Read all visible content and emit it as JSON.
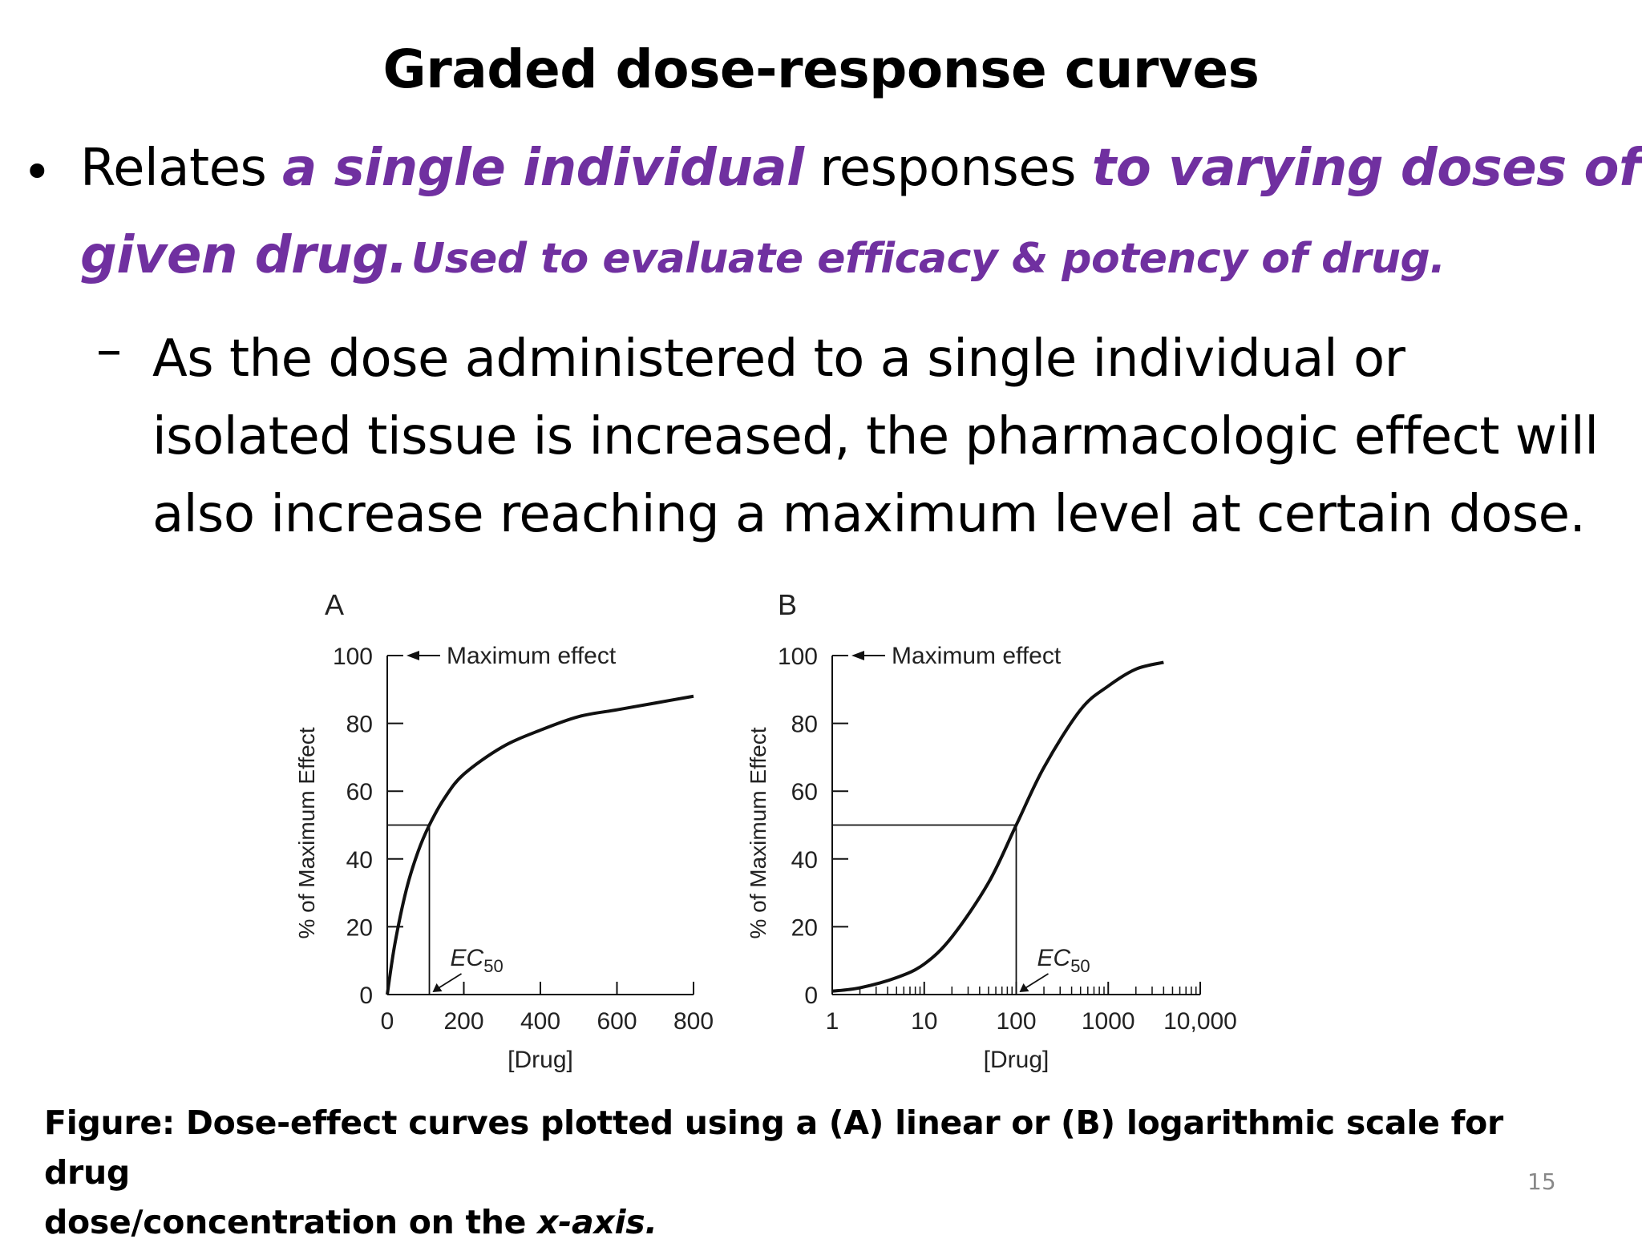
{
  "slide": {
    "title": "Graded dose-response curves",
    "bullet_symbol": "•",
    "bullet": {
      "p1": "Relates ",
      "p2": "a single individual",
      "p3": " responses ",
      "p4": "to varying doses of a",
      "p5": "given drug.",
      "p6": "Used to evaluate efficacy & potency of  drug."
    },
    "sub_dash": "–",
    "sub_lines": [
      "As the dose administered to a single individual or",
      "isolated tissue is increased, the pharmacologic effect will",
      "also increase reaching a maximum level at  certain dose."
    ],
    "caption": {
      "part1": "Figure: Dose-effect curves plotted using a (A) linear or (B) logarithmic scale for drug",
      "part2": "dose/concentration on the ",
      "part3": "x-axis."
    },
    "page_number": "15"
  },
  "chart_data": [
    {
      "type": "line",
      "panel_label": "A",
      "ylabel": "% of Maximum Effect",
      "xlabel": "[Drug]",
      "xscale": "linear",
      "xlim": [
        0,
        800
      ],
      "ylim": [
        0,
        100
      ],
      "x_ticks": [
        "0",
        "200",
        "400",
        "600",
        "800"
      ],
      "y_ticks": [
        "0",
        "20",
        "40",
        "60",
        "80",
        "100"
      ],
      "annotations": {
        "max_effect": "Maximum effect",
        "ec50_base": "EC",
        "ec50_sub": "50"
      },
      "ec50": 110,
      "series": [
        {
          "x": [
            0,
            20,
            50,
            80,
            110,
            150,
            200,
            300,
            400,
            500,
            600,
            700,
            800
          ],
          "y": [
            0,
            15,
            31,
            42,
            50,
            58,
            65,
            73,
            78,
            82,
            84,
            86,
            88
          ]
        }
      ]
    },
    {
      "type": "line",
      "panel_label": "B",
      "ylabel": "% of Maximum Effect",
      "xlabel": "[Drug]",
      "xscale": "log",
      "xlim": [
        1,
        10000
      ],
      "ylim": [
        0,
        100
      ],
      "x_ticks": [
        "1",
        "10",
        "100",
        "1000",
        "10,000"
      ],
      "y_ticks": [
        "0",
        "20",
        "40",
        "60",
        "80",
        "100"
      ],
      "annotations": {
        "max_effect": "Maximum effect",
        "ec50_base": "EC",
        "ec50_sub": "50"
      },
      "ec50": 100,
      "series": [
        {
          "x": [
            1,
            2,
            5,
            10,
            20,
            50,
            100,
            200,
            500,
            1000,
            2000,
            4000
          ],
          "y": [
            1,
            2,
            5,
            9,
            17,
            33,
            50,
            67,
            84,
            91,
            96,
            98
          ]
        }
      ]
    }
  ]
}
